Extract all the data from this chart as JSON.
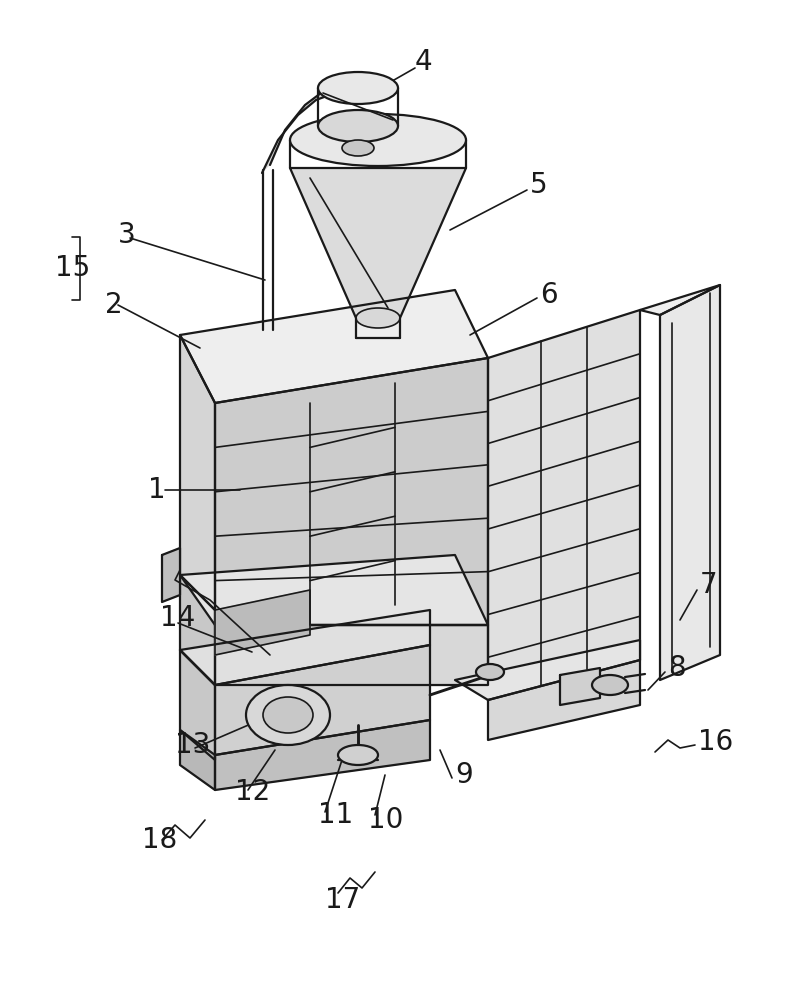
{
  "background_color": "#ffffff",
  "line_color": "#1a1a1a",
  "label_color": "#1a1a1a",
  "label_fontsize": 20,
  "figure_width": 8.05,
  "figure_height": 10.0,
  "dpi": 100
}
